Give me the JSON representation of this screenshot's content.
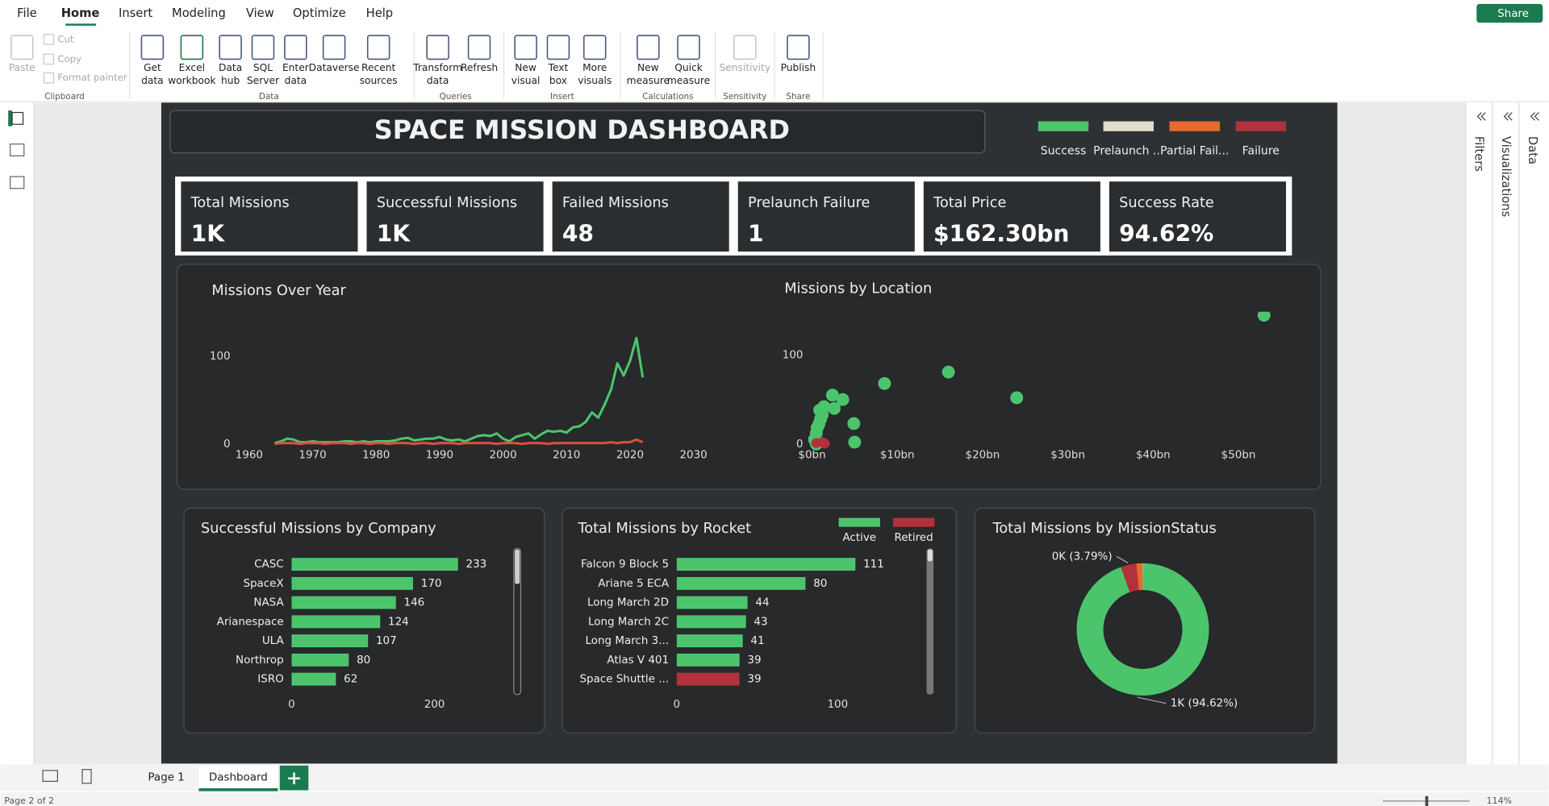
{
  "ribbon": {
    "tabs": [
      "File",
      "Home",
      "Insert",
      "Modeling",
      "View",
      "Optimize",
      "Help"
    ],
    "share": "Share",
    "groups": [
      {
        "label": "Clipboard",
        "buttons": [
          [
            "Paste"
          ],
          [
            "Cut"
          ],
          [
            "Copy"
          ],
          [
            "Format painter"
          ]
        ]
      },
      {
        "label": "Data",
        "buttons": [
          [
            "Get",
            "data"
          ],
          [
            "Excel",
            "workbook"
          ],
          [
            "Data",
            "hub"
          ],
          [
            "SQL",
            "Server"
          ],
          [
            "Enter",
            "data"
          ],
          [
            "Dataverse"
          ],
          [
            "Recent",
            "sources"
          ]
        ]
      },
      {
        "label": "Queries",
        "buttons": [
          [
            "Transform",
            "data"
          ],
          [
            "Refresh"
          ]
        ]
      },
      {
        "label": "Insert",
        "buttons": [
          [
            "New",
            "visual"
          ],
          [
            "Text",
            "box"
          ],
          [
            "More",
            "visuals"
          ]
        ]
      },
      {
        "label": "Calculations",
        "buttons": [
          [
            "New",
            "measure"
          ],
          [
            "Quick",
            "measure"
          ]
        ]
      },
      {
        "label": "Sensitivity",
        "buttons": [
          [
            "Sensitivity"
          ]
        ]
      },
      {
        "label": "Share",
        "buttons": [
          [
            "Publish"
          ]
        ]
      }
    ]
  },
  "side_panes": [
    "Filters",
    "Visualizations",
    "Data"
  ],
  "dashboard": {
    "title": "SPACE MISSION DASHBOARD",
    "legend": [
      {
        "name": "Success",
        "color": "#4cc46c"
      },
      {
        "name": "Prelaunch ...",
        "color": "#e2ddcc"
      },
      {
        "name": "Partial Fail...",
        "color": "#e8692e"
      },
      {
        "name": "Failure",
        "color": "#b3313c"
      }
    ],
    "kpis": [
      {
        "label": "Total Missions",
        "value": "1K"
      },
      {
        "label": "Successful Missions",
        "value": "1K"
      },
      {
        "label": "Failed Missions",
        "value": "48"
      },
      {
        "label": "Prelaunch Failure",
        "value": "1"
      },
      {
        "label": "Total Price",
        "value": "$162.30bn"
      },
      {
        "label": "Success Rate",
        "value": "94.62%"
      }
    ]
  },
  "chart_data": [
    {
      "type": "line",
      "title": "Missions Over Year",
      "x": [
        1964,
        1965,
        1966,
        1967,
        1968,
        1969,
        1970,
        1971,
        1972,
        1973,
        1974,
        1975,
        1976,
        1977,
        1978,
        1979,
        1980,
        1981,
        1982,
        1983,
        1984,
        1985,
        1986,
        1987,
        1988,
        1989,
        1990,
        1991,
        1992,
        1993,
        1994,
        1995,
        1996,
        1997,
        1998,
        1999,
        2000,
        2001,
        2002,
        2003,
        2004,
        2005,
        2006,
        2007,
        2008,
        2009,
        2010,
        2011,
        2012,
        2013,
        2014,
        2015,
        2016,
        2017,
        2018,
        2019,
        2020,
        2021,
        2022
      ],
      "series": [
        {
          "name": "Success",
          "color": "#4cc46c",
          "values": [
            1,
            3,
            6,
            5,
            2,
            2,
            3,
            2,
            2,
            2,
            2,
            3,
            3,
            2,
            3,
            2,
            3,
            3,
            3,
            4,
            6,
            7,
            4,
            5,
            6,
            6,
            8,
            5,
            4,
            5,
            3,
            6,
            9,
            10,
            9,
            12,
            6,
            3,
            8,
            10,
            12,
            6,
            11,
            15,
            14,
            15,
            13,
            19,
            20,
            25,
            36,
            30,
            45,
            62,
            92,
            78,
            95,
            121,
            76
          ]
        },
        {
          "name": "Failure",
          "color": "#d9503f",
          "values": [
            0,
            1,
            1,
            1,
            0,
            1,
            1,
            1,
            0,
            1,
            1,
            1,
            0,
            1,
            1,
            0,
            1,
            1,
            0,
            1,
            1,
            1,
            0,
            1,
            1,
            0,
            1,
            1,
            1,
            0,
            1,
            1,
            1,
            1,
            1,
            0,
            1,
            1,
            1,
            0,
            1,
            1,
            1,
            0,
            1,
            1,
            1,
            1,
            1,
            1,
            1,
            1,
            1,
            2,
            1,
            2,
            2,
            5,
            2
          ]
        }
      ],
      "xlim": [
        1960,
        2030
      ],
      "xticks": [
        1960,
        1970,
        1980,
        1990,
        2000,
        2010,
        2020,
        2030
      ],
      "ylim": [
        0,
        125
      ],
      "yticks": [
        0,
        100
      ]
    },
    {
      "type": "scatter",
      "title": "Missions by Location",
      "series": [
        {
          "name": "Success",
          "color": "#4cc46c",
          "x": [
            0.3,
            0.5,
            0.6,
            0.8,
            1,
            1.2,
            0.9,
            1.4,
            2.4,
            3.6,
            2.6,
            4.9,
            8.5,
            16,
            24,
            53,
            0.5,
            5
          ],
          "values": [
            5,
            12,
            18,
            22,
            28,
            33,
            38,
            42,
            55,
            50,
            40,
            23,
            68,
            81,
            52,
            145,
            0,
            2
          ]
        },
        {
          "name": "Failure",
          "color": "#b3313c",
          "x": [
            0.5,
            1.2,
            1.5
          ],
          "values": [
            1,
            2,
            0.5
          ]
        }
      ],
      "xlim": [
        0,
        55
      ],
      "xticks": [
        {
          "value": 0,
          "label": "$0bn"
        },
        {
          "value": 10,
          "label": "$10bn"
        },
        {
          "value": 20,
          "label": "$20bn"
        },
        {
          "value": 30,
          "label": "$30bn"
        },
        {
          "value": 40,
          "label": "$40bn"
        },
        {
          "value": 50,
          "label": "$50bn"
        }
      ],
      "ylim": [
        0,
        150
      ],
      "yticks": [
        0,
        100
      ]
    },
    {
      "type": "bar",
      "orientation": "horizontal",
      "title": "Successful Missions by Company",
      "categories": [
        "CASC",
        "SpaceX",
        "NASA",
        "Arianespace",
        "ULA",
        "Northrop",
        "ISRO"
      ],
      "series": [
        {
          "color": "#4cc46c",
          "values": [
            233,
            170,
            146,
            124,
            107,
            80,
            62
          ]
        }
      ],
      "xlim": [
        0,
        300
      ],
      "xticks": [
        0,
        200
      ]
    },
    {
      "type": "bar",
      "orientation": "horizontal",
      "title": "Total Missions by Rocket",
      "categories": [
        "Falcon 9 Block 5",
        "Ariane 5 ECA",
        "Long March 2D",
        "Long March 2C",
        "Long March 3...",
        "Atlas V 401",
        "Space Shuttle ..."
      ],
      "series": [
        {
          "name": "Active",
          "color": "#4cc46c",
          "values": [
            111,
            80,
            44,
            43,
            41,
            39,
            null
          ]
        },
        {
          "name": "Retired",
          "color": "#b3313c",
          "values": [
            null,
            null,
            null,
            null,
            null,
            null,
            39
          ]
        }
      ],
      "xlim": [
        0,
        150
      ],
      "xticks": [
        0,
        100
      ]
    },
    {
      "type": "pie",
      "title": "Total Missions by MissionStatus",
      "values": [
        94.62,
        3.79,
        1.49,
        0.1
      ],
      "value_labels": [
        "1K (94.62%)",
        "0K (3.79%)",
        null,
        null
      ],
      "colors": [
        "#4cc46c",
        "#b3313c",
        "#e8692e",
        "#e2ddcc"
      ]
    }
  ],
  "pages": [
    "Page 1",
    "Dashboard"
  ],
  "status": "Page 2 of 2",
  "zoom": "114%"
}
